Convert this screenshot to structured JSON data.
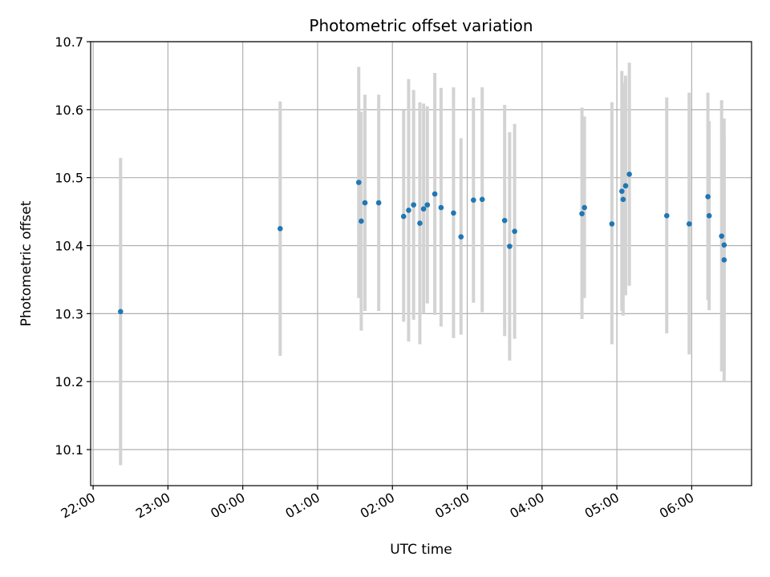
{
  "chart_data": {
    "type": "scatter",
    "title": "Photometric offset variation",
    "xlabel": "UTC time",
    "ylabel": "Photometric offset",
    "grid": true,
    "x_axis": {
      "kind": "time",
      "lim": [
        "21:58",
        "06:48"
      ],
      "ticks": [
        "22:00",
        "23:00",
        "00:00",
        "01:00",
        "02:00",
        "03:00",
        "04:00",
        "05:00",
        "06:00"
      ]
    },
    "y_axis": {
      "lim": [
        10.047,
        10.7
      ],
      "ticks": [
        "10.1",
        "10.2",
        "10.3",
        "10.4",
        "10.5",
        "10.6",
        "10.7"
      ]
    },
    "colors": {
      "point": "#1f77b4",
      "errorbar": "#d3d3d3",
      "grid": "#b0b0b0"
    },
    "series": [
      {
        "points": [
          {
            "x": "22:22",
            "y": 10.303,
            "lo": 10.077,
            "hi": 10.529
          },
          {
            "x": "00:30",
            "y": 10.425,
            "lo": 10.238,
            "hi": 10.612
          },
          {
            "x": "01:33",
            "y": 10.493,
            "lo": 10.323,
            "hi": 10.663
          },
          {
            "x": "01:35",
            "y": 10.436,
            "lo": 10.275,
            "hi": 10.597
          },
          {
            "x": "01:38",
            "y": 10.463,
            "lo": 10.304,
            "hi": 10.622
          },
          {
            "x": "01:49",
            "y": 10.463,
            "lo": 10.304,
            "hi": 10.622
          },
          {
            "x": "02:09",
            "y": 10.443,
            "lo": 10.288,
            "hi": 10.599
          },
          {
            "x": "02:13",
            "y": 10.452,
            "lo": 10.259,
            "hi": 10.645
          },
          {
            "x": "02:17",
            "y": 10.46,
            "lo": 10.291,
            "hi": 10.629
          },
          {
            "x": "02:22",
            "y": 10.433,
            "lo": 10.255,
            "hi": 10.611
          },
          {
            "x": "02:25",
            "y": 10.454,
            "lo": 10.3,
            "hi": 10.609
          },
          {
            "x": "02:28",
            "y": 10.46,
            "lo": 10.315,
            "hi": 10.605
          },
          {
            "x": "02:34",
            "y": 10.476,
            "lo": 10.298,
            "hi": 10.654
          },
          {
            "x": "02:39",
            "y": 10.456,
            "lo": 10.281,
            "hi": 10.632
          },
          {
            "x": "02:49",
            "y": 10.448,
            "lo": 10.264,
            "hi": 10.633
          },
          {
            "x": "02:55",
            "y": 10.413,
            "lo": 10.269,
            "hi": 10.558
          },
          {
            "x": "03:05",
            "y": 10.467,
            "lo": 10.316,
            "hi": 10.618
          },
          {
            "x": "03:12",
            "y": 10.468,
            "lo": 10.302,
            "hi": 10.633
          },
          {
            "x": "03:30",
            "y": 10.437,
            "lo": 10.267,
            "hi": 10.607
          },
          {
            "x": "03:34",
            "y": 10.399,
            "lo": 10.231,
            "hi": 10.567
          },
          {
            "x": "03:38",
            "y": 10.421,
            "lo": 10.263,
            "hi": 10.579
          },
          {
            "x": "04:32",
            "y": 10.447,
            "lo": 10.292,
            "hi": 10.603
          },
          {
            "x": "04:34",
            "y": 10.456,
            "lo": 10.323,
            "hi": 10.59
          },
          {
            "x": "04:56",
            "y": 10.432,
            "lo": 10.255,
            "hi": 10.611
          },
          {
            "x": "05:04",
            "y": 10.48,
            "lo": 10.304,
            "hi": 10.657
          },
          {
            "x": "05:05",
            "y": 10.468,
            "lo": 10.297,
            "hi": 10.639
          },
          {
            "x": "05:07",
            "y": 10.488,
            "lo": 10.327,
            "hi": 10.65
          },
          {
            "x": "05:10",
            "y": 10.505,
            "lo": 10.341,
            "hi": 10.669
          },
          {
            "x": "05:40",
            "y": 10.444,
            "lo": 10.271,
            "hi": 10.618
          },
          {
            "x": "05:58",
            "y": 10.432,
            "lo": 10.24,
            "hi": 10.625
          },
          {
            "x": "06:13",
            "y": 10.472,
            "lo": 10.32,
            "hi": 10.625
          },
          {
            "x": "06:14",
            "y": 10.444,
            "lo": 10.305,
            "hi": 10.583
          },
          {
            "x": "06:24",
            "y": 10.414,
            "lo": 10.215,
            "hi": 10.614
          },
          {
            "x": "06:26",
            "y": 10.401,
            "lo": 10.215,
            "hi": 10.587
          },
          {
            "x": "06:26",
            "y": 10.379,
            "lo": 10.2,
            "hi": 10.56
          }
        ]
      }
    ]
  }
}
